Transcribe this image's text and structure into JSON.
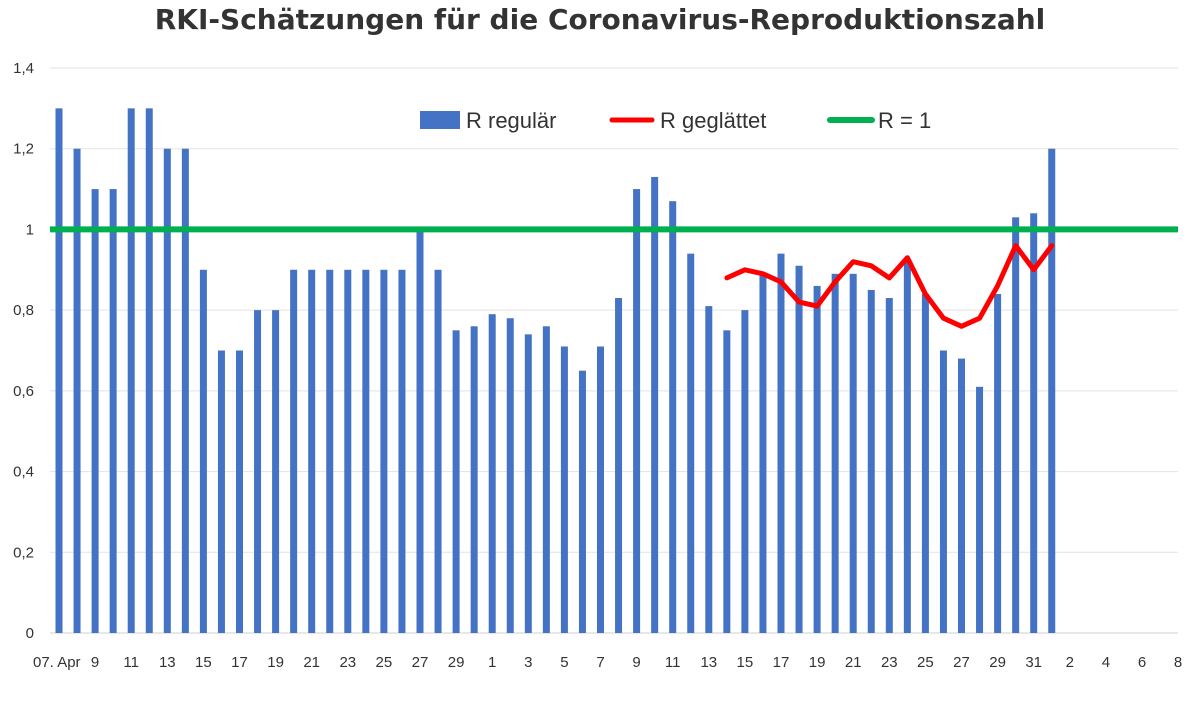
{
  "chart_data": {
    "type": "bar",
    "title": "RKI-Schätzungen für die Coronavirus-Reproduktionszahl",
    "xlabel": "",
    "ylabel": "",
    "ylim": [
      0,
      1.4
    ],
    "y_ticks": [
      "0",
      "0,2",
      "0,4",
      "0,6",
      "0,8",
      "1",
      "1,2",
      "1,4"
    ],
    "x_tick_labels": [
      "07. Apr",
      "9",
      "11",
      "13",
      "15",
      "17",
      "19",
      "21",
      "23",
      "25",
      "27",
      "29",
      "1",
      "3",
      "5",
      "7",
      "9",
      "11",
      "13",
      "15",
      "17",
      "19",
      "21",
      "23",
      "25",
      "27",
      "29",
      "31",
      "2",
      "4",
      "6",
      "8"
    ],
    "legend_position": "top-center",
    "grid": true,
    "series": [
      {
        "name": "R regulär",
        "kind": "bar",
        "color": "#4472C4",
        "values": [
          1.3,
          1.2,
          1.1,
          1.1,
          1.3,
          1.3,
          1.2,
          1.2,
          0.9,
          0.7,
          0.7,
          0.8,
          0.8,
          0.9,
          0.9,
          0.9,
          0.9,
          0.9,
          0.9,
          0.9,
          1.0,
          0.9,
          0.75,
          0.76,
          0.79,
          0.78,
          0.74,
          0.76,
          0.71,
          0.65,
          0.71,
          0.83,
          1.1,
          1.13,
          1.07,
          0.94,
          0.81,
          0.75,
          0.8,
          0.89,
          0.94,
          0.91,
          0.86,
          0.89,
          0.89,
          0.85,
          0.83,
          0.92,
          0.84,
          0.7,
          0.68,
          0.61,
          0.84,
          1.03,
          1.04,
          1.2
        ]
      },
      {
        "name": "R geglättet",
        "kind": "line",
        "color": "#FF0000",
        "start_index": 37,
        "values": [
          0.88,
          0.9,
          0.89,
          0.87,
          0.82,
          0.81,
          0.87,
          0.92,
          0.91,
          0.88,
          0.93,
          0.84,
          0.78,
          0.76,
          0.78,
          0.86,
          0.96,
          0.9,
          0.96
        ]
      },
      {
        "name": "R = 1",
        "kind": "line",
        "color": "#00B050",
        "value": 1
      }
    ]
  }
}
